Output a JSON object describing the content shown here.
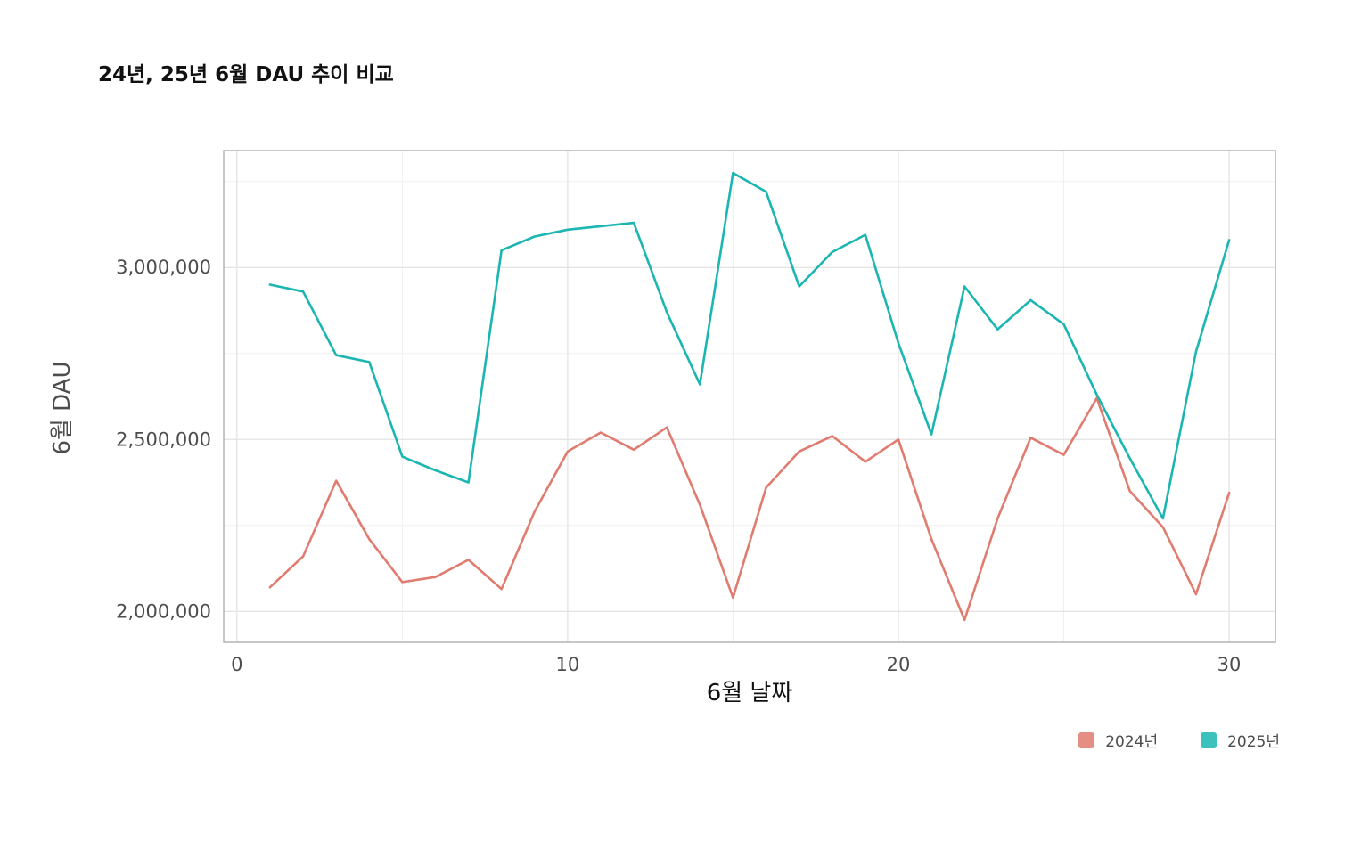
{
  "chart_data": {
    "type": "line",
    "title": "24년, 25년 6월 DAU 추이 비교",
    "xlabel": "6월 날짜",
    "ylabel": "6월 DAU",
    "xlim": [
      -0.4,
      31.4
    ],
    "ylim": [
      1910000,
      3340000
    ],
    "x_ticks": [
      0,
      10,
      20,
      30
    ],
    "x_tick_labels": [
      "0",
      "10",
      "20",
      "30"
    ],
    "y_ticks": [
      2000000,
      2500000,
      3000000
    ],
    "y_tick_labels": [
      "2,000,000",
      "2,500,000",
      "3,000,000"
    ],
    "grid": true,
    "legend_position": "bottom-right",
    "x": [
      1,
      2,
      3,
      4,
      5,
      6,
      7,
      8,
      9,
      10,
      11,
      12,
      13,
      14,
      15,
      16,
      17,
      18,
      19,
      20,
      21,
      22,
      23,
      24,
      25,
      26,
      27,
      28,
      29,
      30
    ],
    "series": [
      {
        "name": "2024년",
        "color": "#e07b6f",
        "values": [
          2070000,
          2160000,
          2380000,
          2210000,
          2085000,
          2100000,
          2150000,
          2065000,
          2290000,
          2465000,
          2520000,
          2470000,
          2535000,
          2310000,
          2040000,
          2360000,
          2465000,
          2510000,
          2435000,
          2500000,
          2210000,
          1975000,
          2270000,
          2505000,
          2455000,
          2620000,
          2350000,
          2245000,
          2050000,
          2345000
        ]
      },
      {
        "name": "2025년",
        "color": "#1bb6b1",
        "values": [
          2950000,
          2930000,
          2745000,
          2725000,
          2450000,
          2410000,
          2375000,
          3050000,
          3090000,
          3110000,
          3120000,
          3130000,
          2870000,
          2660000,
          3275000,
          3220000,
          2945000,
          3045000,
          3095000,
          2780000,
          2515000,
          2945000,
          2820000,
          2905000,
          2835000,
          2630000,
          2445000,
          2270000,
          2755000,
          3080000
        ]
      }
    ]
  }
}
